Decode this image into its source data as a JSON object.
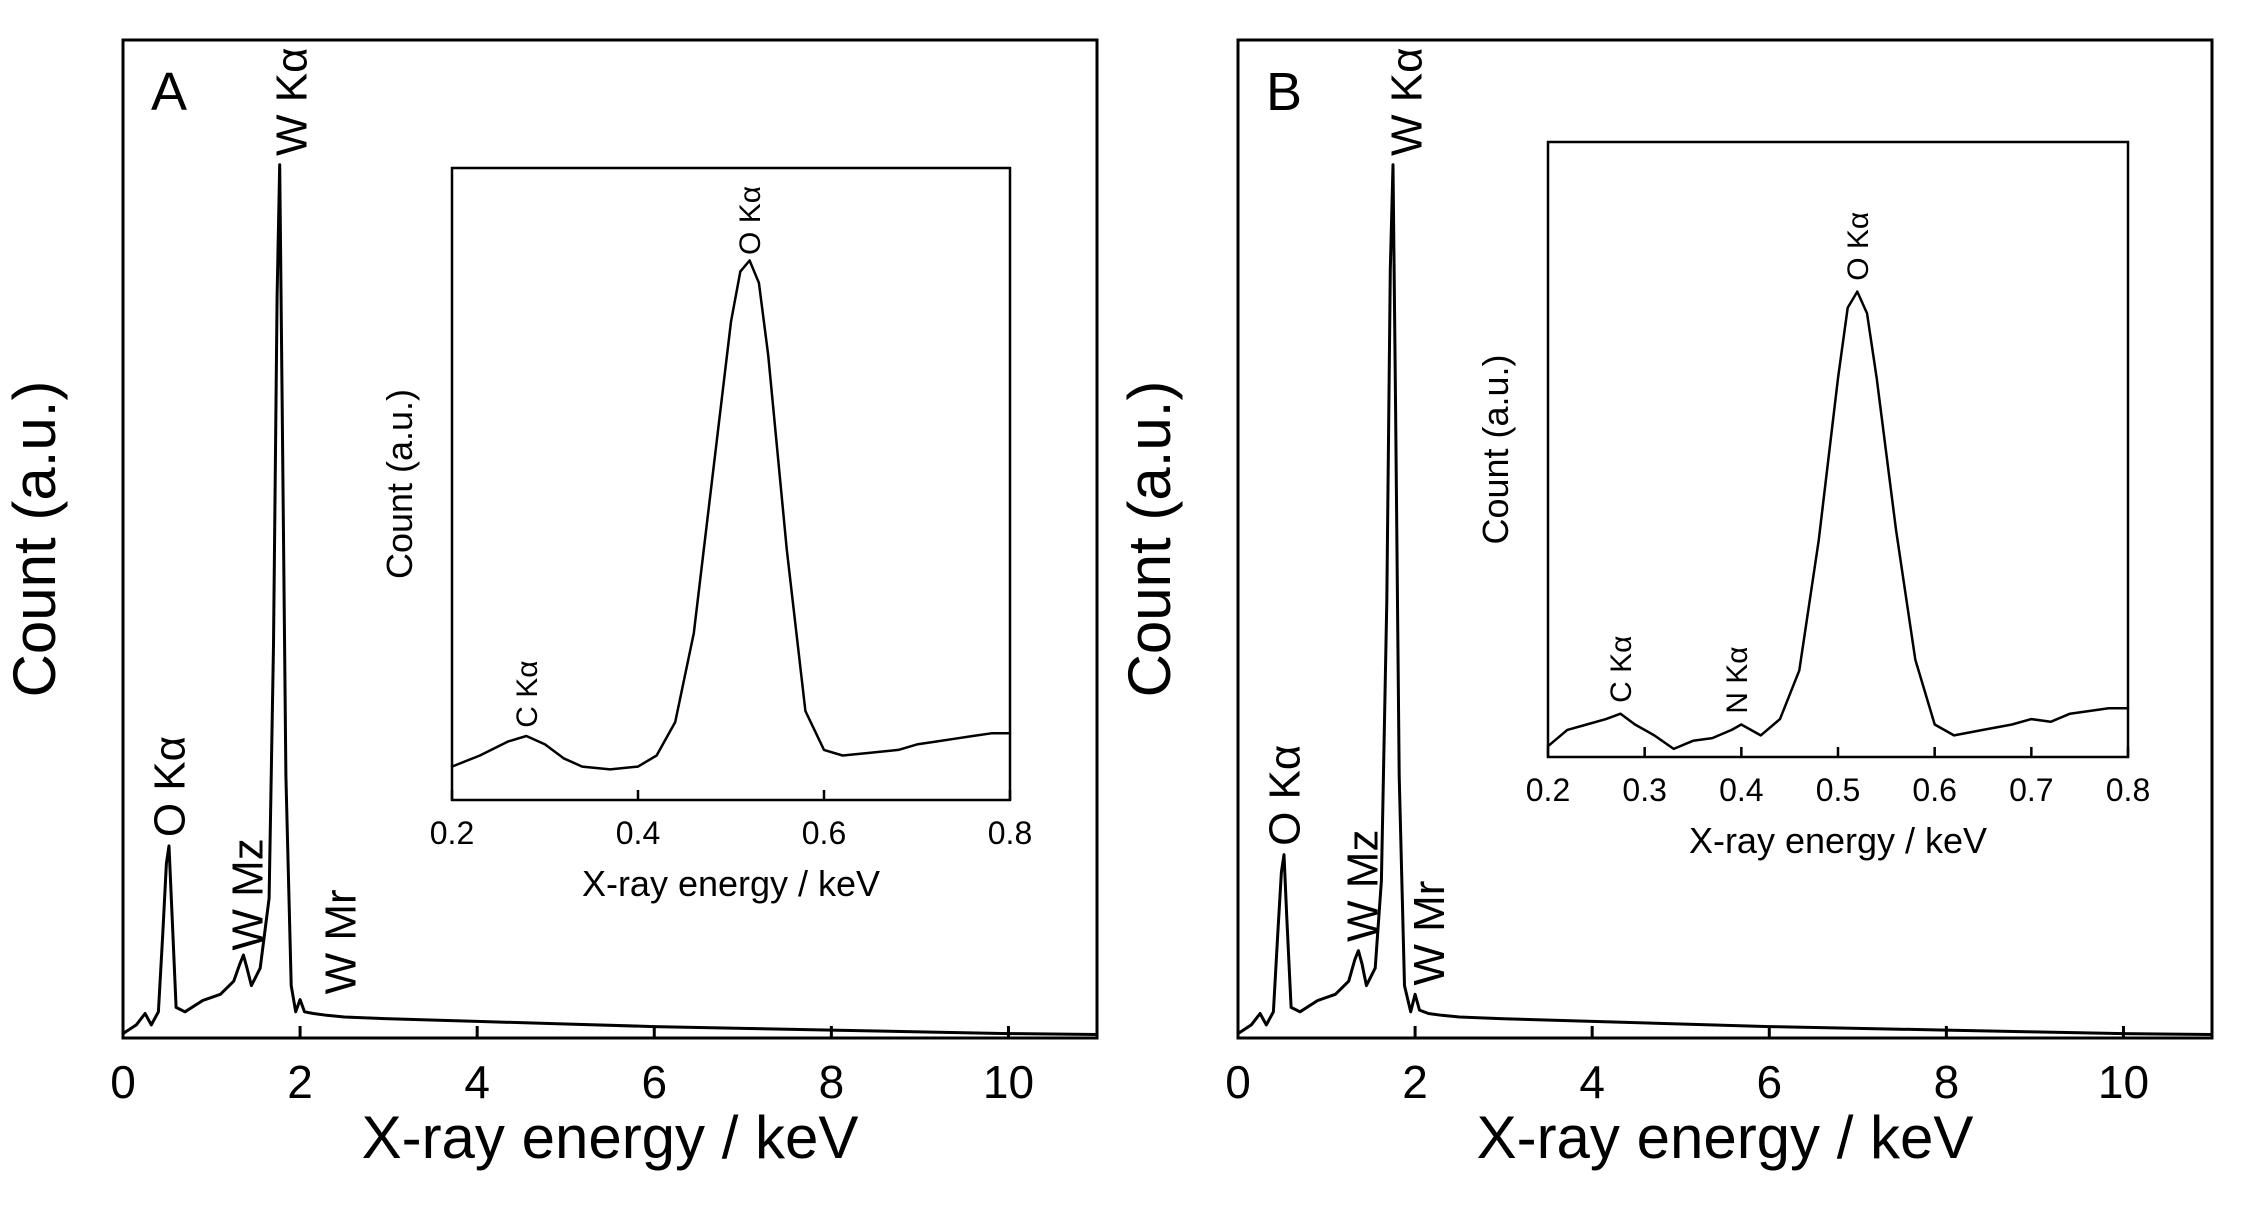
{
  "colors": {
    "line": "#000000",
    "background": "#ffffff"
  },
  "chart_data": [
    {
      "panel": "A",
      "type": "line",
      "xlabel": "X-ray energy / keV",
      "ylabel": "Count (a.u.)",
      "xlim": [
        0,
        11
      ],
      "ylim": [
        0,
        100
      ],
      "xticks": [
        0,
        2,
        4,
        6,
        8,
        10
      ],
      "y_tick_labels": false,
      "grid": false,
      "legend": "none",
      "series": [
        {
          "x": [
            0,
            0.15,
            0.25,
            0.32,
            0.4,
            0.45,
            0.49,
            0.52,
            0.55,
            0.6,
            0.7,
            0.9,
            1.1,
            1.25,
            1.32,
            1.36,
            1.4,
            1.45,
            1.55,
            1.65,
            1.7,
            1.74,
            1.77,
            1.8,
            1.84,
            1.9,
            1.95,
            2.0,
            2.05,
            2.15,
            2.3,
            2.5,
            3,
            4,
            5,
            6,
            7,
            8,
            9,
            10,
            11
          ],
          "y": [
            0.5,
            1.5,
            2.8,
            1.5,
            3,
            12,
            20,
            22,
            15,
            3.5,
            3,
            4.3,
            5,
            6.5,
            8.5,
            9.5,
            8,
            6,
            8,
            16,
            45,
            85,
            100,
            70,
            30,
            6,
            3,
            4.4,
            3,
            2.8,
            2.6,
            2.4,
            2.2,
            1.9,
            1.6,
            1.3,
            1.1,
            0.9,
            0.7,
            0.5,
            0.4
          ]
        }
      ],
      "annotations": [
        {
          "text": "A",
          "x": 0.3,
          "y": 108
        },
        {
          "text": "W Kα",
          "x": 1.9,
          "y": 101
        },
        {
          "text": "O Kα",
          "x": 0.52,
          "y": 23
        },
        {
          "text": "W Mz",
          "x": 1.4,
          "y": 10
        },
        {
          "text": "W Mr",
          "x": 2.45,
          "y": 5
        }
      ],
      "inset": {
        "type": "line",
        "xlabel": "X-ray energy / keV",
        "ylabel": "Count (a.u.)",
        "xlim": [
          0.2,
          0.8
        ],
        "ylim": [
          0,
          100
        ],
        "xticks": [
          0.2,
          0.4,
          0.6,
          0.8
        ],
        "xtick_labels": [
          "0.2",
          "0.4",
          "0.6",
          "0.8"
        ],
        "series": [
          {
            "x": [
              0.2,
              0.23,
              0.26,
              0.28,
              0.3,
              0.32,
              0.34,
              0.37,
              0.4,
              0.42,
              0.44,
              0.46,
              0.48,
              0.5,
              0.51,
              0.52,
              0.53,
              0.54,
              0.56,
              0.58,
              0.6,
              0.62,
              0.65,
              0.68,
              0.7,
              0.72,
              0.74,
              0.76,
              0.78,
              0.8
            ],
            "y": [
              6,
              8,
              10.5,
              11.5,
              10,
              7.5,
              6,
              5.5,
              6,
              8,
              14,
              30,
              58,
              86,
              95,
              97,
              93,
              80,
              45,
              16,
              9,
              8,
              8.5,
              9,
              10,
              10.5,
              11,
              11.5,
              12,
              12
            ]
          }
        ],
        "annotations": [
          {
            "text": "O Kα",
            "x": 0.52,
            "y": 98
          },
          {
            "text": "C Kα",
            "x": 0.28,
            "y": 13
          }
        ]
      }
    },
    {
      "panel": "B",
      "type": "line",
      "xlabel": "X-ray energy / keV",
      "ylabel": "Count (a.u.)",
      "xlim": [
        0,
        11
      ],
      "ylim": [
        0,
        100
      ],
      "xticks": [
        0,
        2,
        4,
        6,
        8,
        10
      ],
      "y_tick_labels": false,
      "grid": false,
      "legend": "none",
      "series": [
        {
          "x": [
            0,
            0.15,
            0.25,
            0.32,
            0.4,
            0.45,
            0.49,
            0.52,
            0.55,
            0.6,
            0.7,
            0.9,
            1.1,
            1.25,
            1.32,
            1.36,
            1.4,
            1.45,
            1.55,
            1.62,
            1.68,
            1.72,
            1.75,
            1.78,
            1.82,
            1.88,
            1.95,
            2.0,
            2.05,
            2.15,
            2.3,
            2.5,
            3,
            4,
            5,
            6,
            7,
            8,
            9,
            10,
            11
          ],
          "y": [
            0.5,
            1.5,
            2.8,
            1.5,
            3,
            12,
            19,
            21,
            14,
            3.5,
            3,
            4.3,
            5,
            6.5,
            9,
            10,
            8.5,
            6,
            8,
            18,
            50,
            88,
            100,
            72,
            30,
            6,
            3,
            5,
            3.2,
            2.8,
            2.6,
            2.4,
            2.2,
            1.9,
            1.6,
            1.3,
            1.1,
            0.9,
            0.7,
            0.5,
            0.4
          ]
        }
      ],
      "annotations": [
        {
          "text": "B",
          "x": 0.3,
          "y": 108
        },
        {
          "text": "W Kα",
          "x": 1.9,
          "y": 101
        },
        {
          "text": "O Kα",
          "x": 0.52,
          "y": 22
        },
        {
          "text": "W Mz",
          "x": 1.4,
          "y": 11
        },
        {
          "text": "W Mr",
          "x": 2.15,
          "y": 6
        }
      ],
      "inset": {
        "type": "line",
        "xlabel": "X-ray energy / keV",
        "ylabel": "Count (a.u.)",
        "xlim": [
          0.2,
          0.8
        ],
        "ylim": [
          0,
          100
        ],
        "xticks": [
          0.2,
          0.3,
          0.4,
          0.5,
          0.6,
          0.7,
          0.8
        ],
        "xtick_labels": [
          "0.2",
          "0.3",
          "0.4",
          "0.5",
          "0.6",
          "0.7",
          "0.8"
        ],
        "series": [
          {
            "x": [
              0.2,
              0.22,
              0.24,
              0.26,
              0.275,
              0.29,
              0.31,
              0.33,
              0.35,
              0.37,
              0.39,
              0.4,
              0.42,
              0.44,
              0.46,
              0.48,
              0.5,
              0.51,
              0.52,
              0.53,
              0.54,
              0.56,
              0.58,
              0.6,
              0.62,
              0.65,
              0.68,
              0.7,
              0.72,
              0.74,
              0.76,
              0.78,
              0.8
            ],
            "y": [
              2,
              5,
              6,
              7,
              8,
              6,
              4,
              1.5,
              3,
              3.5,
              5,
              6,
              4,
              7,
              16,
              40,
              70,
              83,
              86,
              82,
              70,
              42,
              18,
              6,
              4,
              5,
              6,
              7,
              6.5,
              8,
              8.5,
              9,
              9
            ]
          }
        ],
        "annotations": [
          {
            "text": "O Kα",
            "x": 0.52,
            "y": 88
          },
          {
            "text": "C Kα",
            "x": 0.275,
            "y": 10
          },
          {
            "text": "N Kα",
            "x": 0.395,
            "y": 8
          }
        ]
      }
    }
  ]
}
